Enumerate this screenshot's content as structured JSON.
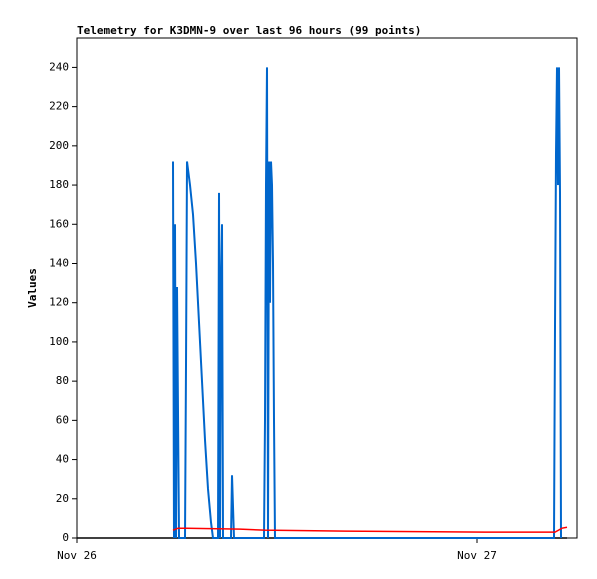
{
  "chart_data": {
    "type": "line",
    "title": "Telemetry for K3DMN-9 over last 96 hours (99 points)",
    "y_label": "Values",
    "xlim": [
      0,
      30
    ],
    "xticks": [
      {
        "value": 0,
        "label": "Nov 26"
      },
      {
        "value": 24,
        "label": "Nov 27"
      }
    ],
    "ylim": [
      0,
      255
    ],
    "yticks": [
      0,
      20,
      40,
      60,
      80,
      100,
      120,
      140,
      160,
      180,
      200,
      220,
      240
    ],
    "series": [
      {
        "color": "#000000",
        "x": [
          0,
          29.4
        ],
        "values": [
          0,
          0
        ]
      },
      {
        "color": "#0066cc",
        "x": [
          5.76,
          5.82,
          5.88,
          5.94,
          6.0,
          6.06,
          6.12,
          6.48,
          6.54,
          6.6,
          6.78,
          6.96,
          7.14,
          7.32,
          7.5,
          7.68,
          7.86,
          8.04,
          8.16,
          8.46,
          8.52,
          8.58,
          8.64,
          8.7,
          8.76,
          9.24,
          9.3,
          9.36,
          9.42,
          11.22,
          11.28,
          11.34,
          11.4,
          11.46,
          11.52,
          11.58,
          11.64,
          11.7,
          11.76,
          11.82,
          11.88,
          28.62,
          28.68,
          28.74,
          28.8,
          28.86,
          28.92,
          28.98,
          29.04
        ],
        "values": [
          192,
          0,
          160,
          0,
          128,
          64,
          0,
          0,
          88,
          192,
          180,
          165,
          140,
          110,
          80,
          50,
          25,
          8,
          0,
          0,
          176,
          0,
          132,
          160,
          0,
          0,
          32,
          16,
          0,
          0,
          60,
          180,
          240,
          0,
          192,
          120,
          192,
          180,
          140,
          60,
          0,
          0,
          108,
          196,
          240,
          180,
          240,
          176,
          0
        ]
      },
      {
        "color": "#ff0000",
        "x": [
          5.76,
          6.06,
          6.6,
          9.78,
          11.22,
          16.08,
          24.48,
          28.68,
          29.1,
          29.4
        ],
        "values": [
          4,
          5,
          5,
          4.5,
          4,
          3.5,
          3,
          3,
          5,
          5.5
        ]
      }
    ]
  }
}
